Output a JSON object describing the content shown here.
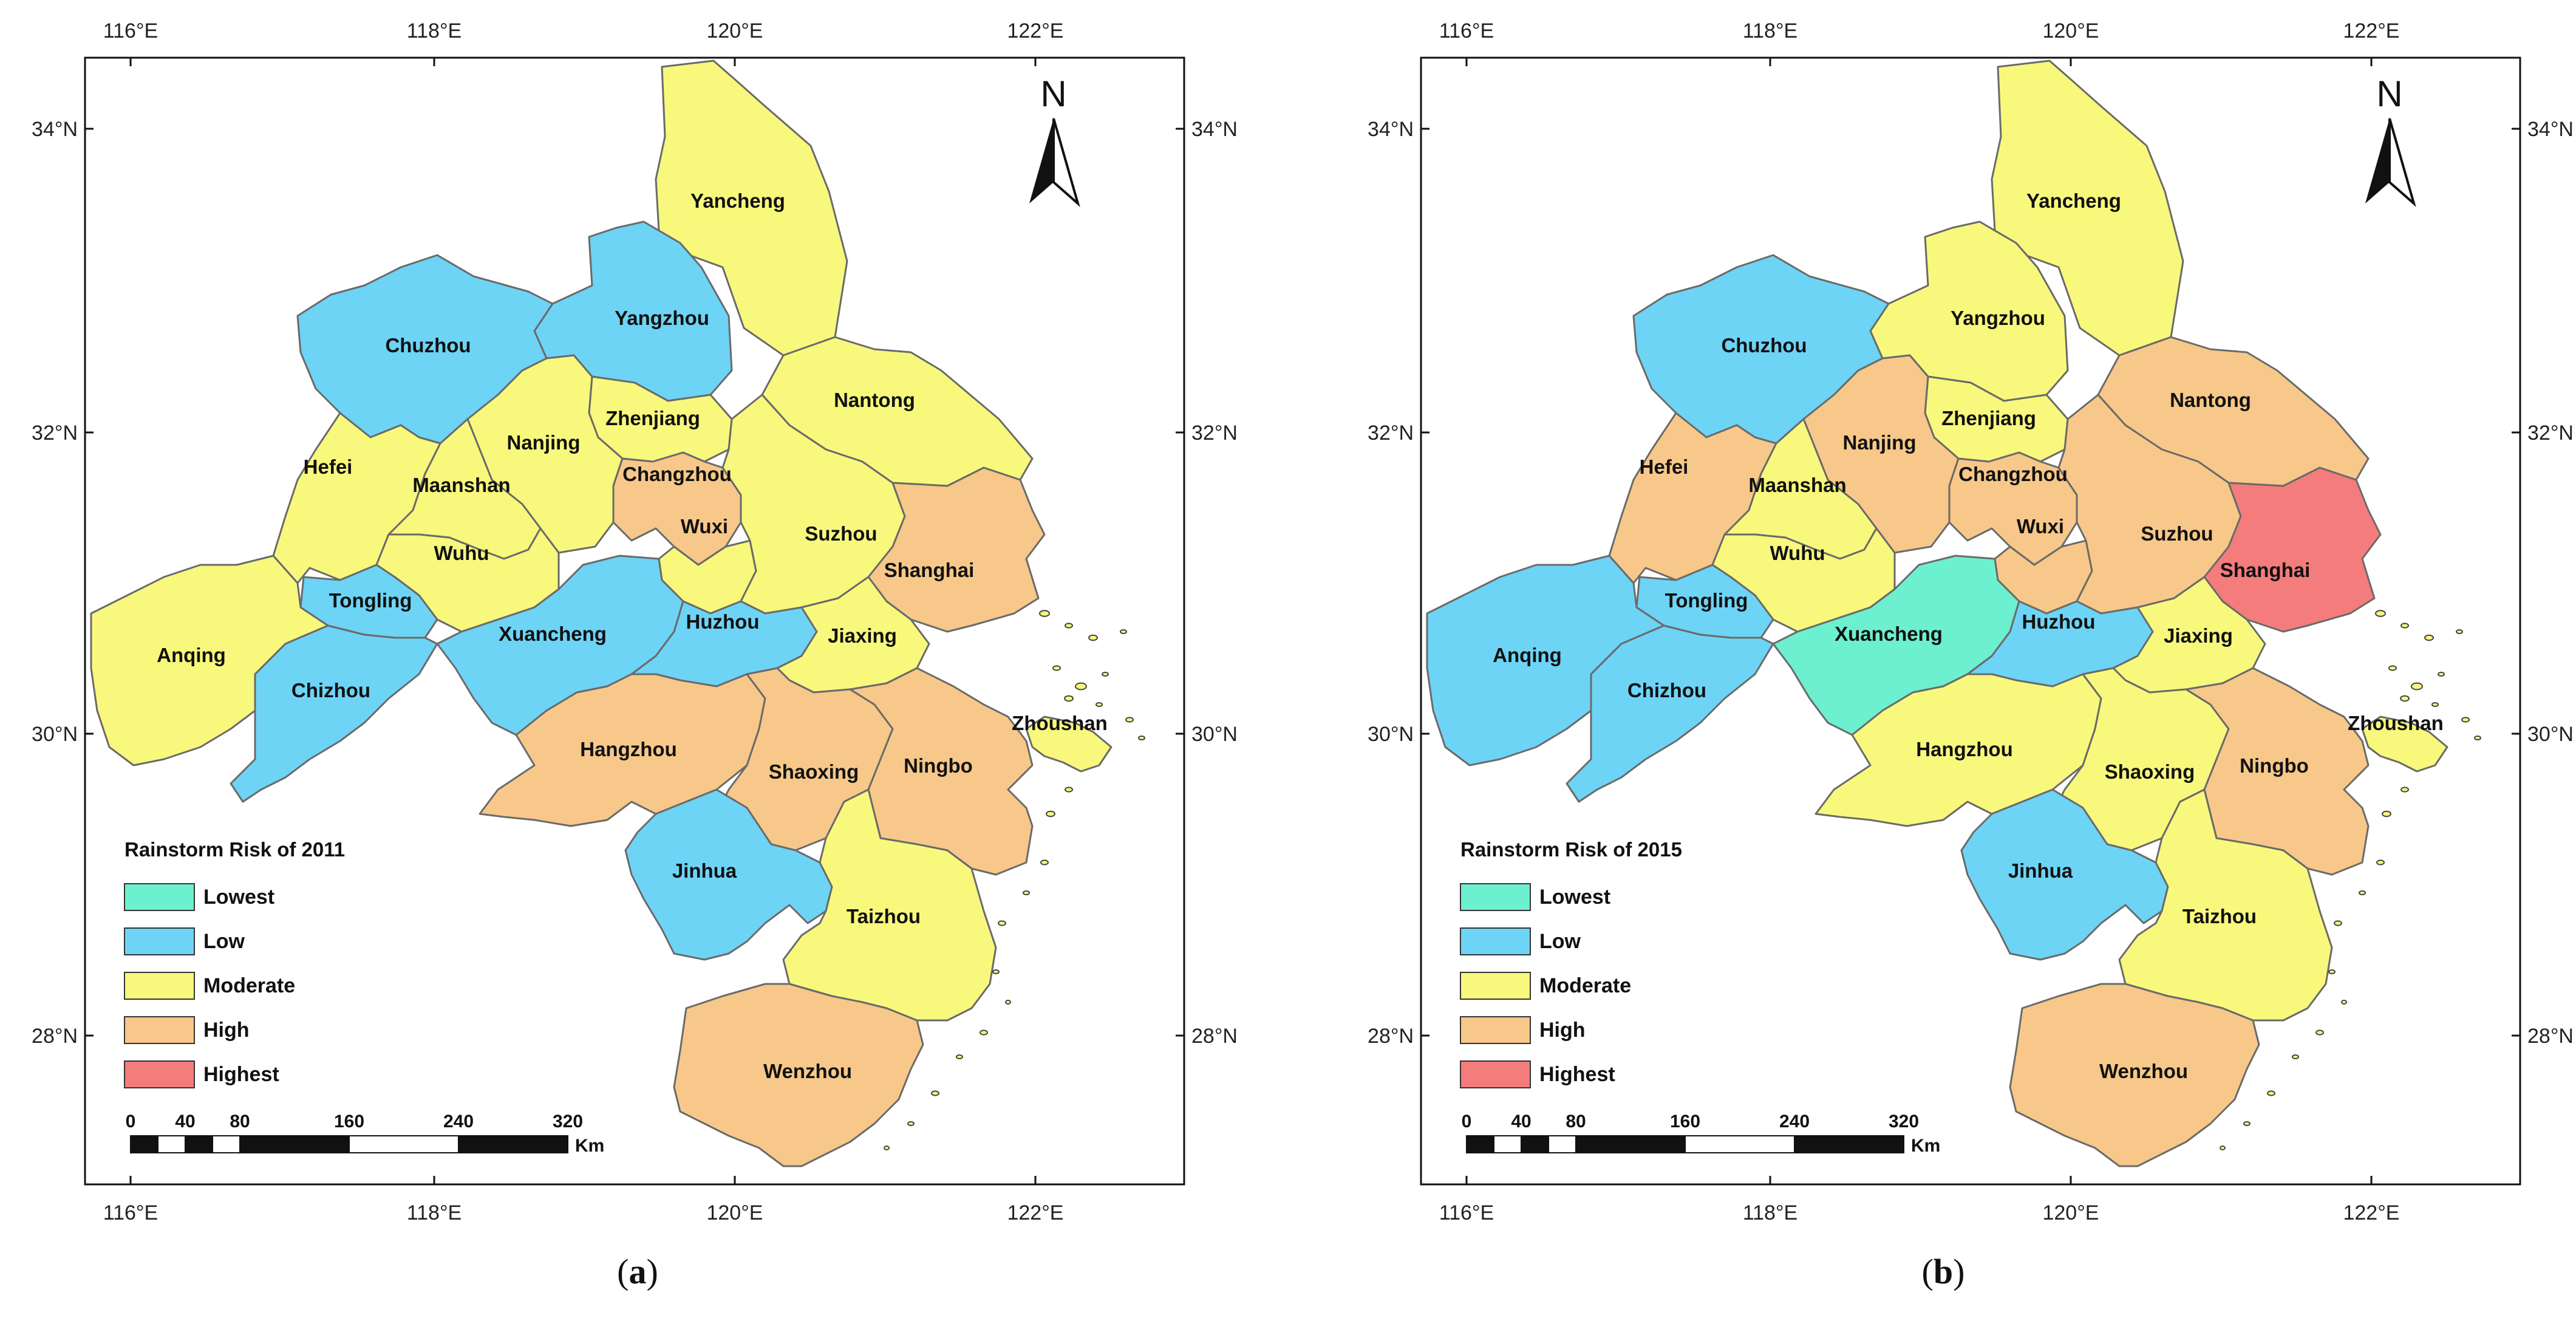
{
  "colors": {
    "lowest": "#6cf0cf",
    "low": "#6dd4f6",
    "moderate": "#f8f87c",
    "high": "#f7c889",
    "highest": "#f47c7c"
  },
  "icons": [
    "north-arrow-icon",
    "scale-bar-icon"
  ],
  "axes": {
    "lon_labels": [
      "116°E",
      "118°E",
      "120°E",
      "122°E"
    ],
    "lat_labels": [
      "34°N",
      "32°N",
      "30°N",
      "28°N"
    ]
  },
  "legend_items": [
    {
      "key": "lowest",
      "label": "Lowest"
    },
    {
      "key": "low",
      "label": "Low"
    },
    {
      "key": "moderate",
      "label": "Moderate"
    },
    {
      "key": "high",
      "label": "High"
    },
    {
      "key": "highest",
      "label": "Highest"
    }
  ],
  "scale_bar": {
    "ticks": [
      "0",
      "40",
      "80",
      "160",
      "240",
      "320"
    ],
    "unit": "Km"
  },
  "north_label": "N",
  "panels": [
    {
      "id": "a",
      "caption": "a",
      "legend_title": "Rainstorm Risk of 2011",
      "risk": {
        "Yancheng": "moderate",
        "Yangzhou": "low",
        "Chuzhou": "low",
        "Nantong": "moderate",
        "Zhenjiang": "moderate",
        "Nanjing": "moderate",
        "Hefei": "moderate",
        "Maanshan": "moderate",
        "Changzhou": "high",
        "Wuxi": "moderate",
        "Suzhou": "moderate",
        "Shanghai": "high",
        "Wuhu": "moderate",
        "Tongling": "low",
        "Xuancheng": "low",
        "Huzhou": "low",
        "Jiaxing": "moderate",
        "Anqing": "moderate",
        "Chizhou": "low",
        "Hangzhou": "high",
        "Shaoxing": "high",
        "Ningbo": "high",
        "Zhoushan": "moderate",
        "Jinhua": "low",
        "Taizhou": "moderate",
        "Wenzhou": "high"
      }
    },
    {
      "id": "b",
      "caption": "b",
      "legend_title": "Rainstorm Risk of 2015",
      "risk": {
        "Yancheng": "moderate",
        "Yangzhou": "moderate",
        "Chuzhou": "low",
        "Nantong": "high",
        "Zhenjiang": "moderate",
        "Nanjing": "high",
        "Hefei": "high",
        "Maanshan": "moderate",
        "Changzhou": "high",
        "Wuxi": "high",
        "Suzhou": "high",
        "Shanghai": "highest",
        "Wuhu": "moderate",
        "Tongling": "low",
        "Xuancheng": "lowest",
        "Huzhou": "low",
        "Jiaxing": "moderate",
        "Anqing": "low",
        "Chizhou": "low",
        "Hangzhou": "moderate",
        "Shaoxing": "moderate",
        "Ningbo": "high",
        "Zhoushan": "moderate",
        "Jinhua": "low",
        "Taizhou": "moderate",
        "Wenzhou": "high"
      }
    }
  ]
}
